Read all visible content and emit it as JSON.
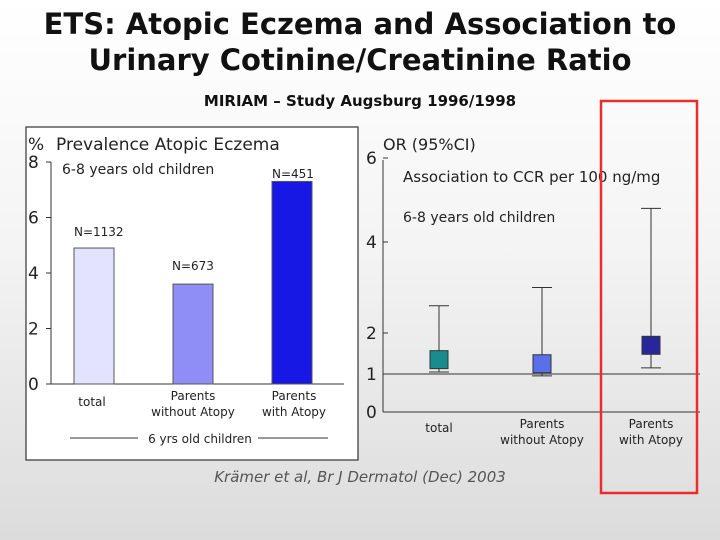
{
  "slide": {
    "title_line1": "ETS: Atopic Eczema and Association to",
    "title_line2": "Urinary Cotinine/Creatinine Ratio",
    "subtitle": "MIRIAM – Study Augsburg 1996/1998",
    "citation": "Krämer et al, Br J Dermatol  (Dec) 2003"
  },
  "colors": {
    "highlight": "#ee2b2b",
    "bar_total": "#e3e3ff",
    "bar_no_atopy": "#8e8ef6",
    "bar_atopy": "#1818e4",
    "box_total": "#178d8d",
    "box_no_atopy": "#5a6fea",
    "box_atopy": "#27279b"
  },
  "chart_data": [
    {
      "type": "bar",
      "title": "Prevalence Atopic Eczema",
      "subtitle": "6-8 years old children",
      "ylabel": "%",
      "ylim": [
        0,
        8
      ],
      "yticks": [
        "0",
        "2",
        "4",
        "6",
        "8"
      ],
      "categories": [
        "total",
        "Parents without Atopy",
        "Parents with Atopy"
      ],
      "values": [
        4.9,
        3.6,
        7.3
      ],
      "n_labels": [
        "N=1132",
        "N=673",
        "N=451"
      ],
      "group_label": "6 yrs old children"
    },
    {
      "type": "scatter",
      "title": "OR (95%CI)",
      "annotation": "Association to CCR per 100 ng/mg",
      "annotation_sub": "6-8 years old children",
      "scale": "log",
      "ylim": [
        0,
        6
      ],
      "yticks": [
        "0",
        "1",
        "2",
        "4",
        "6"
      ],
      "categories": [
        "total",
        "Parents without Atopy",
        "Parents with Atopy"
      ],
      "or": [
        1.35,
        1.25,
        1.7
      ],
      "ci_lower": [
        1.05,
        0.95,
        1.15
      ],
      "ci_upper": [
        2.6,
        3.0,
        4.8
      ]
    }
  ]
}
